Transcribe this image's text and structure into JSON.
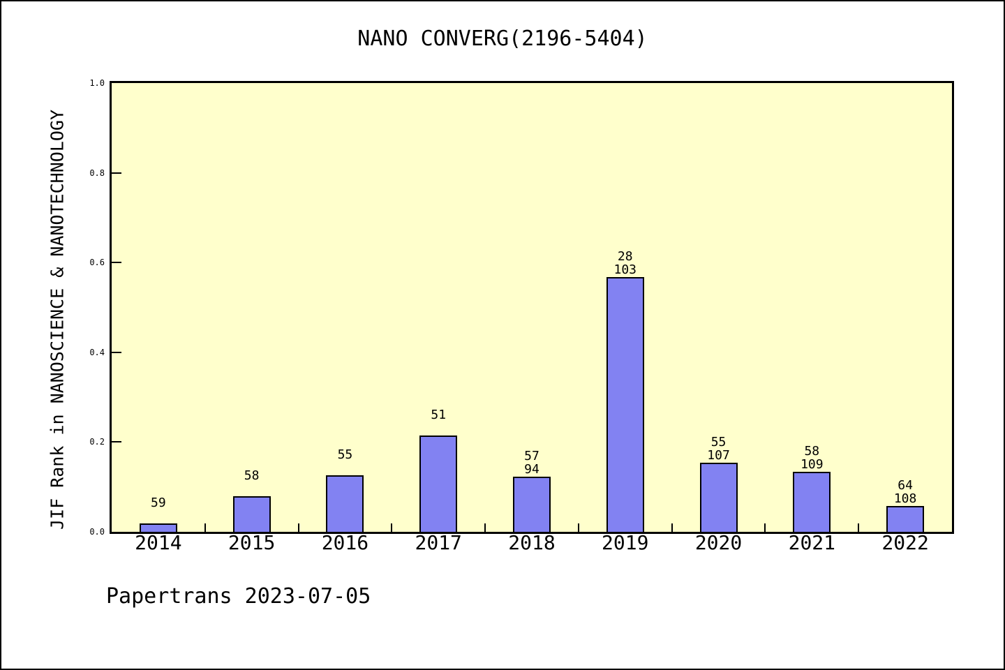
{
  "footer": "Papertrans 2023-07-05",
  "colors": {
    "plot_bg": "#FFFFCC",
    "bar_fill": "#8282F2",
    "bar_border": "#000000",
    "axis": "#000000",
    "text": "#000000"
  },
  "chart_data": {
    "type": "bar",
    "title": "NANO CONVERG(2196-5404)",
    "xlabel": "",
    "ylabel": "JIF Rank in NANOSCIENCE & NANOTECHNOLOGY",
    "categories": [
      "2014",
      "2015",
      "2016",
      "2017",
      "2018",
      "2019",
      "2020",
      "2021",
      "2022"
    ],
    "values": [
      0.018,
      0.079,
      0.126,
      0.215,
      0.123,
      0.567,
      0.154,
      0.134,
      0.058
    ],
    "bar_labels": [
      [
        "59",
        ""
      ],
      [
        "58",
        ""
      ],
      [
        "55",
        ""
      ],
      [
        "51",
        ""
      ],
      [
        "57",
        "94"
      ],
      [
        "28",
        "103"
      ],
      [
        "55",
        "107"
      ],
      [
        "58",
        "109"
      ],
      [
        "64",
        "108"
      ]
    ],
    "yticks": [
      "0.0",
      "0.2",
      "0.4",
      "0.6",
      "0.8",
      "1.0"
    ],
    "ylim": [
      0,
      1
    ],
    "grid": false,
    "legend_position": "none"
  }
}
